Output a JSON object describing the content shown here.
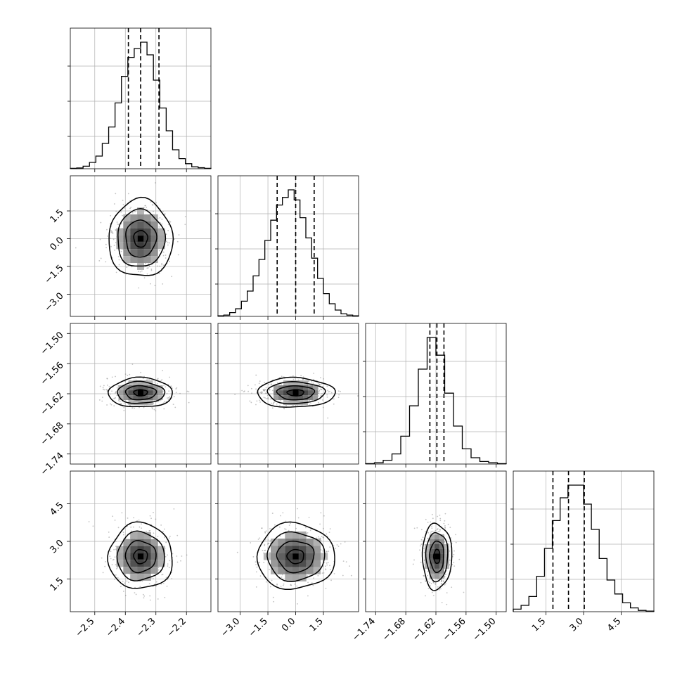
{
  "chart_data": {
    "type": "corner",
    "parameters": [
      {
        "id": "p0",
        "range": [
          -2.58,
          -2.12
        ],
        "median": -2.35,
        "q16": -2.39,
        "q84": -2.29,
        "ticks": [
          -2.5,
          -2.4,
          -2.3,
          -2.2
        ],
        "tick_labels": [
          "−2.5",
          "−2.4",
          "−2.3",
          "−2.2"
        ],
        "histogram": [
          0.003,
          0.006,
          0.02,
          0.05,
          0.1,
          0.2,
          0.33,
          0.52,
          0.73,
          0.88,
          0.95,
          1.0,
          0.9,
          0.7,
          0.48,
          0.3,
          0.15,
          0.08,
          0.04,
          0.015,
          0.008,
          0.003
        ]
      },
      {
        "id": "p1",
        "range": [
          -4.2,
          3.4
        ],
        "median": 0.0,
        "q16": -1.0,
        "q84": 1.0,
        "ticks": [
          -3.0,
          -1.5,
          0.0,
          1.5
        ],
        "tick_labels": [
          "−3.0",
          "−1.5",
          "0.0",
          "1.5"
        ],
        "histogram": [
          0.005,
          0.01,
          0.03,
          0.06,
          0.12,
          0.2,
          0.32,
          0.45,
          0.6,
          0.76,
          0.88,
          0.94,
          1.0,
          0.92,
          0.78,
          0.62,
          0.46,
          0.3,
          0.18,
          0.1,
          0.05,
          0.02,
          0.01,
          0.005
        ]
      },
      {
        "id": "p2",
        "range": [
          -1.76,
          -1.48
        ],
        "median": -1.618,
        "q16": -1.632,
        "q84": -1.604,
        "ticks": [
          -1.74,
          -1.68,
          -1.62,
          -1.56,
          -1.5
        ],
        "tick_labels": [
          "−1.74",
          "−1.68",
          "−1.62",
          "−1.56",
          "−1.50"
        ],
        "histogram": [
          0.003,
          0.01,
          0.03,
          0.08,
          0.22,
          0.46,
          0.75,
          1.0,
          0.86,
          0.56,
          0.3,
          0.12,
          0.05,
          0.02,
          0.01,
          0.003
        ]
      },
      {
        "id": "p3",
        "range": [
          0.2,
          5.8
        ],
        "median": 2.4,
        "q16": 1.78,
        "q84": 3.03,
        "ticks": [
          1.5,
          3.0,
          4.5
        ],
        "tick_labels": [
          "1.5",
          "3.0",
          "4.5"
        ],
        "histogram": [
          0.02,
          0.05,
          0.12,
          0.28,
          0.5,
          0.72,
          0.9,
          1.0,
          1.0,
          0.85,
          0.65,
          0.42,
          0.25,
          0.14,
          0.07,
          0.03,
          0.01,
          0.005
        ]
      }
    ],
    "grid": true,
    "xlabel": "",
    "ylabel": "",
    "title": ""
  },
  "colors": {
    "line": "#000000",
    "grid": "#b0b0b0",
    "scatter": "#888888"
  }
}
